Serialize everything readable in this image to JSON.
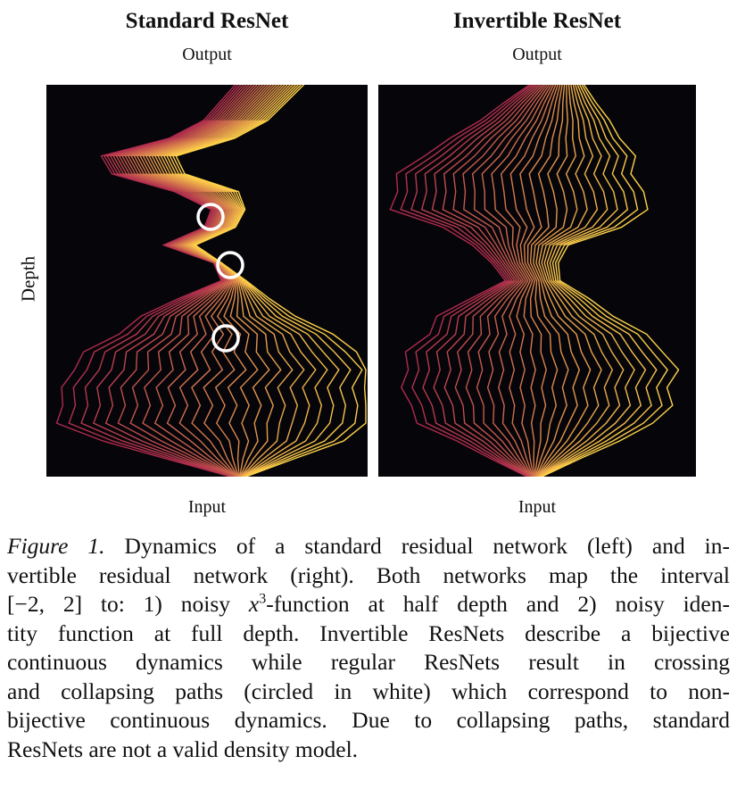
{
  "figure": {
    "left_panel": {
      "title": "Standard ResNet",
      "top_label": "Output",
      "bottom_label": "Input"
    },
    "right_panel": {
      "title": "Invertible ResNet",
      "top_label": "Output",
      "bottom_label": "Input"
    },
    "y_axis_label": "Depth",
    "colors": {
      "background": "#06060a",
      "path_start": "#b02a4e",
      "path_end": "#ffd34a",
      "circle": "#ffffff"
    }
  },
  "caption": {
    "fig_label": "Figure 1.",
    "l1": "Dynamics of a standard residual network (left) and in-",
    "l2": "vertible residual network (right). Both networks map the interval",
    "l3a": "[−2, 2] to: 1) noisy ",
    "l3x": "x",
    "l3e": "3",
    "l3b": "-function at half depth and 2) noisy iden-",
    "l4": "tity function at full depth. Invertible ResNets describe a bijective",
    "l5": "continuous dynamics while regular ResNets result in crossing",
    "l6": "and collapsing paths (circled in white) which correspond to non-",
    "l7": "bijective continuous dynamics. Due to collapsing paths, standard",
    "l8": "ResNets are not a valid density model."
  }
}
